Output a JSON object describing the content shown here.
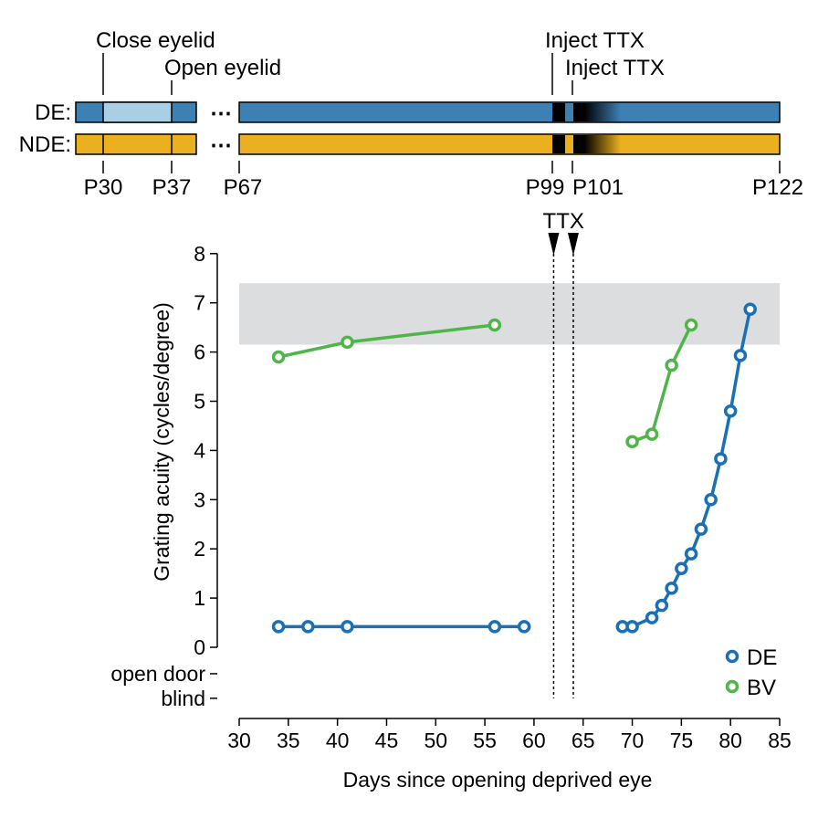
{
  "timeline": {
    "rows": [
      {
        "label": "DE:",
        "color": "#3d80b4",
        "closed_color": "#a9cfe4"
      },
      {
        "label": "NDE:",
        "color": "#ebb01f"
      }
    ],
    "markers": [
      "P30",
      "P37",
      "P67",
      "P99",
      "P101",
      "P122"
    ],
    "events": {
      "close": "Close eyelid",
      "open": "Open eyelid",
      "inject1": "Inject TTX",
      "inject2": "Inject TTX"
    },
    "ellipsis": "⋯"
  },
  "chart_data": {
    "type": "line",
    "xlabel": "Days since opening deprived eye",
    "ylabel": "Grating acuity (cycles/degree)",
    "xlim": [
      30,
      85
    ],
    "ylim": [
      -1,
      8
    ],
    "x_ticks": [
      30,
      35,
      40,
      45,
      50,
      55,
      60,
      65,
      70,
      75,
      80,
      85
    ],
    "y_ticks": [
      0,
      1,
      2,
      3,
      4,
      5,
      6,
      7,
      8
    ],
    "y_text_ticks": [
      {
        "label": "open door",
        "value": -0.5
      },
      {
        "label": "blind",
        "value": -1
      }
    ],
    "normal_band": [
      6.15,
      7.4
    ],
    "ttx": {
      "label": "TTX",
      "days": [
        62,
        64
      ]
    },
    "legend_position": "bottom-right",
    "series": [
      {
        "name": "DE",
        "color": "#1a6fb5",
        "segments": [
          [
            [
              34,
              0.42
            ],
            [
              37,
              0.42
            ],
            [
              41,
              0.42
            ],
            [
              56,
              0.42
            ],
            [
              59,
              0.42
            ]
          ],
          [
            [
              69,
              0.42
            ],
            [
              70,
              0.42
            ],
            [
              72,
              0.6
            ],
            [
              73,
              0.85
            ],
            [
              74,
              1.2
            ],
            [
              75,
              1.6
            ],
            [
              76,
              1.9
            ],
            [
              77,
              2.4
            ],
            [
              78,
              3.0
            ],
            [
              79,
              3.83
            ],
            [
              80,
              4.8
            ],
            [
              81,
              5.93
            ],
            [
              82,
              6.87
            ]
          ]
        ]
      },
      {
        "name": "BV",
        "color": "#4fb548",
        "segments": [
          [
            [
              34,
              5.9
            ],
            [
              41,
              6.2
            ],
            [
              56,
              6.55
            ]
          ],
          [
            [
              70,
              4.18
            ],
            [
              72,
              4.33
            ],
            [
              74,
              5.73
            ],
            [
              76,
              6.55
            ]
          ]
        ]
      }
    ]
  }
}
